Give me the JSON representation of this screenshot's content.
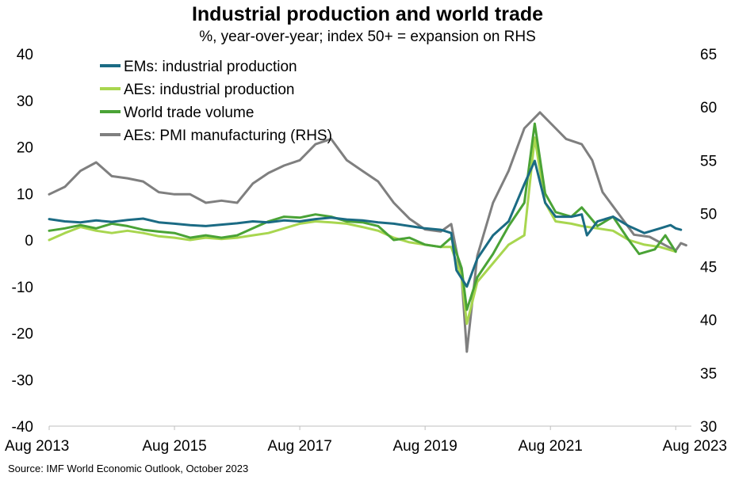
{
  "title": "Industrial production and world trade",
  "subtitle": "%, year-over-year; index 50+ = expansion on RHS",
  "source": "Source: IMF World Economic Outlook, October 2023",
  "chart_data": {
    "type": "line",
    "x_start": "2013-08",
    "x_end": "2023-11",
    "xticks": [
      {
        "date": "2013-08",
        "label": "Aug 2013"
      },
      {
        "date": "2015-08",
        "label": "Aug 2015"
      },
      {
        "date": "2017-08",
        "label": "Aug 2017"
      },
      {
        "date": "2019-08",
        "label": "Aug 2019"
      },
      {
        "date": "2021-08",
        "label": "Aug 2021"
      },
      {
        "date": "2023-08",
        "label": "Aug 2023"
      }
    ],
    "y_left": {
      "min": -40,
      "max": 40,
      "ticks": [
        "40",
        "30",
        "20",
        "10",
        "0",
        "-10",
        "-20",
        "-30",
        "-40"
      ]
    },
    "y_right": {
      "min": 30,
      "max": 65,
      "ticks": [
        "65",
        "60",
        "55",
        "50",
        "45",
        "40",
        "35",
        "30"
      ]
    },
    "grid": false,
    "legend": "top-left",
    "series": [
      {
        "name": "EMs: industrial production",
        "color": "#1b6b84",
        "axis": "left",
        "points": [
          [
            "2013-08",
            4.5
          ],
          [
            "2013-11",
            4.0
          ],
          [
            "2014-02",
            3.8
          ],
          [
            "2014-05",
            4.2
          ],
          [
            "2014-08",
            3.9
          ],
          [
            "2014-11",
            4.3
          ],
          [
            "2015-02",
            4.6
          ],
          [
            "2015-05",
            3.8
          ],
          [
            "2015-08",
            3.5
          ],
          [
            "2015-11",
            3.2
          ],
          [
            "2016-02",
            3.0
          ],
          [
            "2016-05",
            3.3
          ],
          [
            "2016-08",
            3.6
          ],
          [
            "2016-11",
            4.0
          ],
          [
            "2017-02",
            3.8
          ],
          [
            "2017-05",
            4.2
          ],
          [
            "2017-08",
            4.0
          ],
          [
            "2017-11",
            4.5
          ],
          [
            "2018-02",
            4.8
          ],
          [
            "2018-05",
            4.4
          ],
          [
            "2018-08",
            4.2
          ],
          [
            "2018-11",
            3.8
          ],
          [
            "2019-02",
            3.5
          ],
          [
            "2019-05",
            3.0
          ],
          [
            "2019-08",
            2.5
          ],
          [
            "2019-11",
            2.2
          ],
          [
            "2020-01",
            1.5
          ],
          [
            "2020-02",
            -6.5
          ],
          [
            "2020-04",
            -10
          ],
          [
            "2020-06",
            -4
          ],
          [
            "2020-09",
            1
          ],
          [
            "2020-12",
            4
          ],
          [
            "2021-03",
            12
          ],
          [
            "2021-05",
            17
          ],
          [
            "2021-07",
            8
          ],
          [
            "2021-09",
            5
          ],
          [
            "2021-12",
            5
          ],
          [
            "2022-02",
            5.5
          ],
          [
            "2022-03",
            1
          ],
          [
            "2022-05",
            4
          ],
          [
            "2022-08",
            5
          ],
          [
            "2022-11",
            3
          ],
          [
            "2023-02",
            1.5
          ],
          [
            "2023-05",
            2.5
          ],
          [
            "2023-07",
            3.2
          ],
          [
            "2023-08",
            2.5
          ],
          [
            "2023-09",
            2.2
          ]
        ]
      },
      {
        "name": "AEs: industrial production",
        "color": "#a8d64f",
        "axis": "left",
        "points": [
          [
            "2013-08",
            0.0
          ],
          [
            "2013-11",
            1.5
          ],
          [
            "2014-02",
            2.8
          ],
          [
            "2014-05",
            2.0
          ],
          [
            "2014-08",
            1.5
          ],
          [
            "2014-11",
            2.0
          ],
          [
            "2015-02",
            1.5
          ],
          [
            "2015-05",
            0.8
          ],
          [
            "2015-08",
            0.5
          ],
          [
            "2015-11",
            0.0
          ],
          [
            "2016-02",
            0.5
          ],
          [
            "2016-05",
            0.2
          ],
          [
            "2016-08",
            0.5
          ],
          [
            "2016-11",
            1.0
          ],
          [
            "2017-02",
            1.5
          ],
          [
            "2017-05",
            2.5
          ],
          [
            "2017-08",
            3.5
          ],
          [
            "2017-11",
            4.0
          ],
          [
            "2018-02",
            3.8
          ],
          [
            "2018-05",
            3.5
          ],
          [
            "2018-08",
            2.8
          ],
          [
            "2018-11",
            2.0
          ],
          [
            "2019-02",
            0.5
          ],
          [
            "2019-05",
            -0.5
          ],
          [
            "2019-08",
            -1.0
          ],
          [
            "2019-11",
            -1.5
          ],
          [
            "2020-01",
            -1.5
          ],
          [
            "2020-03",
            -8
          ],
          [
            "2020-04",
            -18
          ],
          [
            "2020-06",
            -9
          ],
          [
            "2020-09",
            -5
          ],
          [
            "2020-12",
            -1
          ],
          [
            "2021-03",
            1
          ],
          [
            "2021-05",
            22
          ],
          [
            "2021-07",
            8
          ],
          [
            "2021-09",
            4
          ],
          [
            "2021-12",
            3.5
          ],
          [
            "2022-02",
            3
          ],
          [
            "2022-05",
            2.5
          ],
          [
            "2022-08",
            2
          ],
          [
            "2022-11",
            0
          ],
          [
            "2023-02",
            -1
          ],
          [
            "2023-05",
            -1.5
          ],
          [
            "2023-08",
            -2.5
          ]
        ]
      },
      {
        "name": "World trade volume",
        "color": "#4aa336",
        "axis": "left",
        "points": [
          [
            "2013-08",
            2.0
          ],
          [
            "2013-11",
            2.5
          ],
          [
            "2014-02",
            3.2
          ],
          [
            "2014-05",
            2.5
          ],
          [
            "2014-08",
            3.5
          ],
          [
            "2014-11",
            3.0
          ],
          [
            "2015-02",
            2.2
          ],
          [
            "2015-05",
            1.8
          ],
          [
            "2015-08",
            1.5
          ],
          [
            "2015-11",
            0.5
          ],
          [
            "2016-02",
            1.0
          ],
          [
            "2016-05",
            0.5
          ],
          [
            "2016-08",
            1.0
          ],
          [
            "2016-11",
            2.5
          ],
          [
            "2017-02",
            4.0
          ],
          [
            "2017-05",
            5.0
          ],
          [
            "2017-08",
            4.8
          ],
          [
            "2017-11",
            5.5
          ],
          [
            "2018-02",
            5.0
          ],
          [
            "2018-05",
            4.0
          ],
          [
            "2018-08",
            3.8
          ],
          [
            "2018-11",
            3.0
          ],
          [
            "2019-02",
            0
          ],
          [
            "2019-05",
            0.5
          ],
          [
            "2019-08",
            -1.0
          ],
          [
            "2019-11",
            -1.5
          ],
          [
            "2020-01",
            0.5
          ],
          [
            "2020-03",
            -6
          ],
          [
            "2020-04",
            -15
          ],
          [
            "2020-06",
            -8
          ],
          [
            "2020-09",
            -3
          ],
          [
            "2020-12",
            3
          ],
          [
            "2021-03",
            8
          ],
          [
            "2021-05",
            25
          ],
          [
            "2021-07",
            10
          ],
          [
            "2021-09",
            6
          ],
          [
            "2021-12",
            5
          ],
          [
            "2022-02",
            7
          ],
          [
            "2022-05",
            3
          ],
          [
            "2022-08",
            5
          ],
          [
            "2022-11",
            0
          ],
          [
            "2023-01",
            -3
          ],
          [
            "2023-04",
            -2
          ],
          [
            "2023-06",
            1
          ],
          [
            "2023-08",
            -2.5
          ]
        ]
      },
      {
        "name": "AEs: PMI manufacturing (RHS)",
        "color": "#7f7f7f",
        "axis": "right",
        "points": [
          [
            "2013-08",
            51.8
          ],
          [
            "2013-11",
            52.5
          ],
          [
            "2014-02",
            54.0
          ],
          [
            "2014-05",
            54.8
          ],
          [
            "2014-08",
            53.5
          ],
          [
            "2014-11",
            53.3
          ],
          [
            "2015-02",
            53.0
          ],
          [
            "2015-05",
            52.0
          ],
          [
            "2015-08",
            51.8
          ],
          [
            "2015-11",
            51.8
          ],
          [
            "2016-02",
            51.0
          ],
          [
            "2016-05",
            51.2
          ],
          [
            "2016-08",
            51.0
          ],
          [
            "2016-11",
            52.8
          ],
          [
            "2017-02",
            53.8
          ],
          [
            "2017-05",
            54.5
          ],
          [
            "2017-08",
            55.0
          ],
          [
            "2017-11",
            56.5
          ],
          [
            "2018-02",
            57.0
          ],
          [
            "2018-05",
            55.0
          ],
          [
            "2018-08",
            54.0
          ],
          [
            "2018-11",
            53.0
          ],
          [
            "2019-02",
            51.0
          ],
          [
            "2019-05",
            49.5
          ],
          [
            "2019-08",
            48.5
          ],
          [
            "2019-11",
            48.3
          ],
          [
            "2020-01",
            49.0
          ],
          [
            "2020-03",
            44
          ],
          [
            "2020-04",
            37
          ],
          [
            "2020-06",
            46
          ],
          [
            "2020-09",
            51
          ],
          [
            "2020-12",
            54
          ],
          [
            "2021-03",
            58
          ],
          [
            "2021-06",
            59.5
          ],
          [
            "2021-09",
            58.0
          ],
          [
            "2021-11",
            57.0
          ],
          [
            "2022-02",
            56.5
          ],
          [
            "2022-04",
            55.0
          ],
          [
            "2022-06",
            52.0
          ],
          [
            "2022-09",
            50.0
          ],
          [
            "2022-12",
            48.0
          ],
          [
            "2023-03",
            47.8
          ],
          [
            "2023-06",
            47.0
          ],
          [
            "2023-08",
            46.5
          ],
          [
            "2023-09",
            47.2
          ],
          [
            "2023-10",
            47.0
          ]
        ]
      }
    ]
  }
}
